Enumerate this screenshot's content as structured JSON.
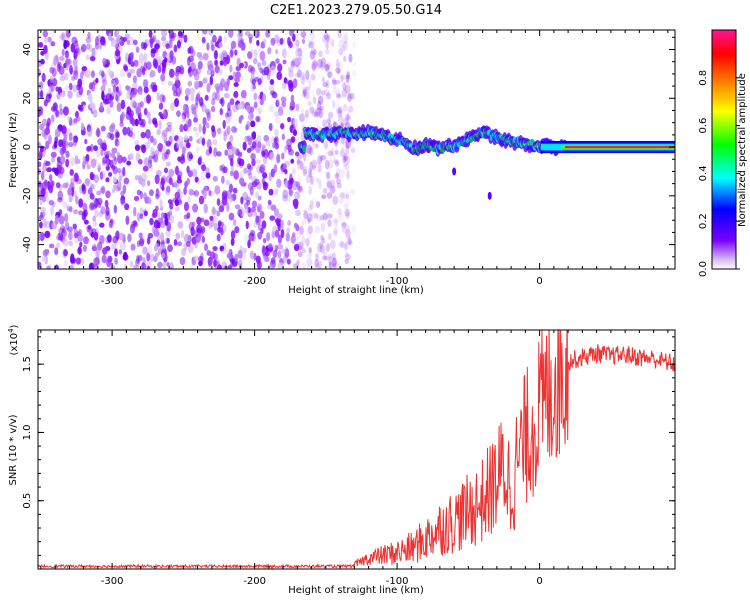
{
  "title": "C2E1.2023.279.05.50.G14",
  "chart_data": [
    {
      "type": "heatmap",
      "xlabel": "Height of straight line (km)",
      "ylabel": "Frequency (Hz)",
      "xlim": [
        -352,
        95
      ],
      "ylim": [
        -50,
        48
      ],
      "xticks": [
        -300,
        -200,
        -100,
        0
      ],
      "xtick_labels": [
        "-300",
        "-200",
        "-100",
        "0"
      ],
      "yticks": [
        -40,
        -20,
        0,
        20,
        40
      ],
      "ytick_labels": [
        "-40",
        "-20",
        "0",
        "20",
        "40"
      ],
      "colorbar": {
        "label": "Normalized spectral amplitude",
        "range": [
          0,
          1
        ],
        "ticks": [
          0.0,
          0.2,
          0.4,
          0.6,
          0.8
        ],
        "tick_labels": [
          "0.0",
          "0.2",
          "0.4",
          "0.6",
          "0.8"
        ],
        "colors": [
          "#ffffff",
          "#d8b8f0",
          "#7a00ff",
          "#0000ff",
          "#00ffff",
          "#00ff00",
          "#ffff00",
          "#ff7f00",
          "#ff0000",
          "#ff1493"
        ]
      },
      "noise_region_x": [
        -352,
        -130
      ],
      "signal_track": {
        "x": [
          -165,
          -150,
          -140,
          -130,
          -120,
          -110,
          -100,
          -95,
          -90,
          -85,
          -80,
          -75,
          -70,
          -65,
          -60,
          -55,
          -50,
          -45,
          -40,
          -35,
          -30,
          -25,
          -20,
          -15,
          -10,
          -5,
          0,
          5,
          10,
          15,
          20,
          40,
          60,
          80,
          95
        ],
        "y": [
          6,
          5,
          6,
          5,
          6,
          5,
          3,
          2,
          0,
          -1,
          1,
          0,
          -1,
          1,
          0,
          2,
          3,
          5,
          6,
          5,
          4,
          3,
          2,
          2,
          1,
          1,
          0,
          1,
          0,
          0,
          0,
          0,
          0,
          0,
          0
        ]
      },
      "isolated_features": [
        {
          "x": -35,
          "y": -20
        },
        {
          "x": -60,
          "y": -10
        }
      ]
    },
    {
      "type": "line",
      "xlabel": "Height of straight line (km)",
      "ylabel": "SNR (10 * v/v)",
      "y_multiplier_label": "(x10",
      "y_multiplier_exp": "4",
      "y_multiplier_close": ")",
      "xlim": [
        -352,
        95
      ],
      "ylim": [
        0,
        1.75
      ],
      "xticks": [
        -300,
        -200,
        -100,
        0
      ],
      "xtick_labels": [
        "-300",
        "-200",
        "-100",
        "0"
      ],
      "yticks": [
        0.5,
        1.0,
        1.5
      ],
      "ytick_labels": [
        "0.5",
        "1.0",
        "1.5"
      ],
      "color": "#ee3333",
      "trend": {
        "x": [
          -352,
          -300,
          -250,
          -200,
          -150,
          -130,
          -120,
          -110,
          -100,
          -90,
          -80,
          -70,
          -60,
          -50,
          -40,
          -30,
          -25,
          -20,
          -15,
          -10,
          -5,
          0,
          5,
          10,
          15,
          20,
          30,
          40,
          50,
          60,
          70,
          80,
          95
        ],
        "y": [
          0.02,
          0.02,
          0.02,
          0.02,
          0.02,
          0.03,
          0.08,
          0.1,
          0.12,
          0.15,
          0.22,
          0.3,
          0.35,
          0.42,
          0.5,
          0.65,
          0.75,
          0.6,
          0.8,
          0.95,
          1.05,
          1.15,
          1.25,
          1.4,
          1.48,
          1.52,
          1.55,
          1.58,
          1.56,
          1.57,
          1.55,
          1.54,
          1.5
        ]
      },
      "noise_amplitude": [
        0.01,
        0.18
      ]
    }
  ]
}
